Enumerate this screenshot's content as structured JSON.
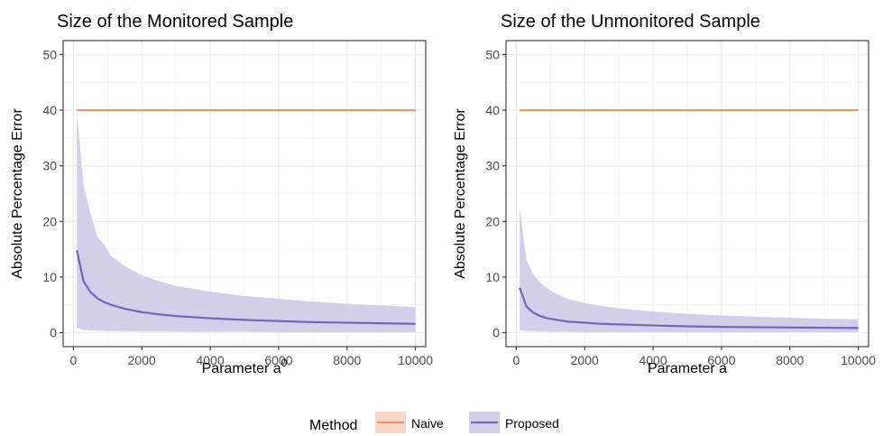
{
  "chart_data": [
    {
      "type": "line",
      "title": "Size of the Monitored Sample",
      "xlabel": "Parameter a",
      "xlabel_superscript": "0",
      "ylabel": "Absolute Percentage Error",
      "xlim": [
        -300,
        10300
      ],
      "ylim": [
        -2.5,
        52.5
      ],
      "xticks": [
        0,
        2000,
        4000,
        6000,
        8000,
        10000
      ],
      "yticks": [
        0,
        10,
        20,
        30,
        40,
        50
      ],
      "grid": true,
      "series": [
        {
          "name": "Naive",
          "color": "#E9946A",
          "x": [
            100,
            10000
          ],
          "y": [
            40,
            40
          ]
        },
        {
          "name": "Proposed",
          "color": "#7266B9",
          "band_color": "#D3CFEA",
          "x": [
            100,
            300,
            500,
            700,
            900,
            1100,
            1500,
            2000,
            2500,
            3000,
            3500,
            4000,
            5000,
            6000,
            7000,
            8000,
            9000,
            10000
          ],
          "y": [
            14.8,
            9.2,
            7.3,
            6.2,
            5.5,
            5.0,
            4.3,
            3.7,
            3.3,
            3.0,
            2.8,
            2.6,
            2.3,
            2.1,
            1.9,
            1.8,
            1.7,
            1.6
          ],
          "y_low": [
            0.9,
            0.5,
            0.4,
            0.35,
            0.3,
            0.3,
            0.25,
            0.2,
            0.2,
            0.2,
            0.15,
            0.15,
            0.15,
            0.1,
            0.1,
            0.1,
            0.1,
            0.1
          ],
          "y_high": [
            39.5,
            26.5,
            21.5,
            17.3,
            15.8,
            13.8,
            12.0,
            10.3,
            9.3,
            8.4,
            7.9,
            7.4,
            6.6,
            6.1,
            5.6,
            5.2,
            4.9,
            4.6
          ]
        }
      ]
    },
    {
      "type": "line",
      "title": "Size of the Unmonitored Sample",
      "xlabel": "Parameter a",
      "ylabel": "Absolute Percentage Error",
      "xlim": [
        -300,
        10300
      ],
      "ylim": [
        -2.5,
        52.5
      ],
      "xticks": [
        0,
        2000,
        4000,
        6000,
        8000,
        10000
      ],
      "yticks": [
        0,
        10,
        20,
        30,
        40,
        50
      ],
      "grid": true,
      "series": [
        {
          "name": "Naive",
          "color": "#E9946A",
          "x": [
            100,
            10000
          ],
          "y": [
            40,
            40
          ]
        },
        {
          "name": "Proposed",
          "color": "#7266B9",
          "band_color": "#D3CFEA",
          "x": [
            100,
            300,
            500,
            700,
            900,
            1100,
            1500,
            2000,
            2500,
            3000,
            3500,
            4000,
            5000,
            6000,
            7000,
            8000,
            9000,
            10000
          ],
          "y": [
            8.1,
            4.7,
            3.6,
            3.0,
            2.6,
            2.4,
            2.0,
            1.8,
            1.6,
            1.5,
            1.4,
            1.3,
            1.15,
            1.05,
            1.0,
            0.95,
            0.9,
            0.85
          ],
          "y_low": [
            0.4,
            0.3,
            0.25,
            0.2,
            0.2,
            0.15,
            0.15,
            0.1,
            0.1,
            0.1,
            0.1,
            0.1,
            0.1,
            0.1,
            0.1,
            0.1,
            0.1,
            0.1
          ],
          "y_high": [
            22.5,
            13.0,
            10.5,
            9.0,
            8.0,
            7.2,
            6.1,
            5.3,
            4.8,
            4.4,
            4.1,
            3.8,
            3.4,
            3.1,
            2.9,
            2.7,
            2.5,
            2.4
          ]
        }
      ]
    }
  ],
  "legend": {
    "title": "Method",
    "placement": "bottom",
    "items": [
      {
        "name": "Naive",
        "line_color": "#E9946A",
        "fill_color": "#F7D7C7"
      },
      {
        "name": "Proposed",
        "line_color": "#7266B9",
        "fill_color": "#D3CFEA"
      }
    ]
  }
}
